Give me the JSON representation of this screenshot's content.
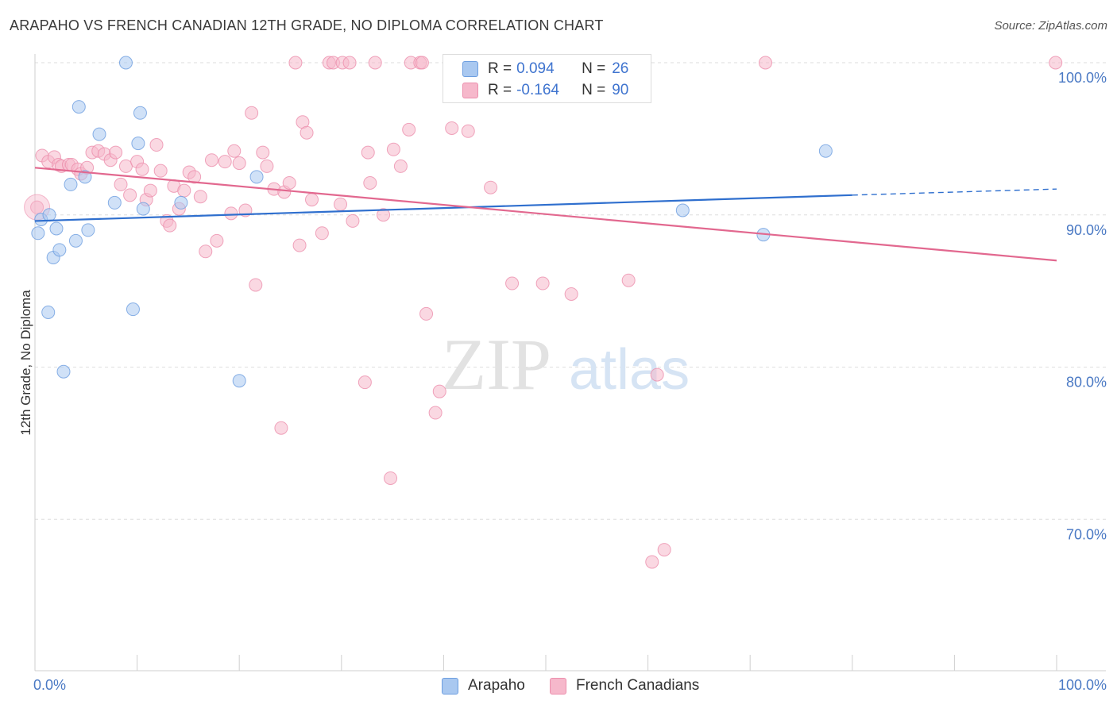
{
  "header": {
    "title": "ARAPAHO VS FRENCH CANADIAN 12TH GRADE, NO DIPLOMA CORRELATION CHART",
    "source": "Source: ZipAtlas.com"
  },
  "colors": {
    "blue_fill": "#a9c8f0",
    "blue_stroke": "#6d9ee0",
    "blue_line": "#2f6fce",
    "pink_fill": "#f6b8cb",
    "pink_stroke": "#ec8fad",
    "pink_line": "#e2688f",
    "tick_text": "#4a79c4"
  },
  "legend_box": {
    "rows": [
      {
        "r_label": "R =",
        "r_value": "0.094",
        "n_label": "N =",
        "n_value": "26"
      },
      {
        "r_label": "R =",
        "r_value": "-0.164",
        "n_label": "N =",
        "n_value": "90"
      }
    ]
  },
  "bottom_legend": {
    "items": [
      {
        "label": "Arapaho"
      },
      {
        "label": "French Canadians"
      }
    ]
  },
  "watermark": {
    "part1": "ZIP",
    "part2": "atlas"
  },
  "chart_data": {
    "type": "scatter",
    "ylabel": "12th Grade, No Diploma",
    "xlim": [
      0,
      100
    ],
    "ylim": [
      60,
      100
    ],
    "x_tick_labels": {
      "left": "0.0%",
      "right": "100.0%"
    },
    "y_ticks": [
      {
        "value": 100,
        "label": "100.0%"
      },
      {
        "value": 90,
        "label": "90.0%"
      },
      {
        "value": 80,
        "label": "80.0%"
      },
      {
        "value": 70,
        "label": "70.0%"
      }
    ],
    "grid": "horizontal dashed",
    "legend_position": "top-center",
    "series": [
      {
        "name": "Arapaho",
        "trend": {
          "x0": 0,
          "y0": 89.6,
          "x1": 80,
          "y1": 91.3,
          "dashed_to_x": 100,
          "dashed_to_y": 91.7
        },
        "points": [
          [
            0.3,
            88.8
          ],
          [
            0.6,
            89.7
          ],
          [
            1.4,
            90.0
          ],
          [
            1.8,
            87.2
          ],
          [
            2.1,
            89.1
          ],
          [
            2.4,
            87.7
          ],
          [
            2.8,
            79.7
          ],
          [
            3.5,
            92.0
          ],
          [
            4.0,
            88.3
          ],
          [
            4.3,
            97.1
          ],
          [
            4.9,
            92.5
          ],
          [
            5.2,
            89.0
          ],
          [
            6.3,
            95.3
          ],
          [
            7.8,
            90.8
          ],
          [
            8.9,
            100.0
          ],
          [
            9.6,
            83.8
          ],
          [
            10.1,
            94.7
          ],
          [
            10.3,
            96.7
          ],
          [
            10.6,
            90.4
          ],
          [
            14.3,
            90.8
          ],
          [
            20.0,
            79.1
          ],
          [
            21.7,
            92.5
          ],
          [
            1.3,
            83.6
          ],
          [
            63.4,
            90.3
          ],
          [
            71.3,
            88.7
          ],
          [
            77.4,
            94.2
          ]
        ]
      },
      {
        "name": "French Canadians",
        "trend": {
          "x0": 0,
          "y0": 93.1,
          "x1": 100,
          "y1": 87.0
        },
        "points": [
          [
            0.2,
            90.5
          ],
          [
            0.7,
            93.9
          ],
          [
            1.3,
            93.5
          ],
          [
            1.9,
            93.8
          ],
          [
            2.3,
            93.3
          ],
          [
            2.6,
            93.2
          ],
          [
            3.3,
            93.3
          ],
          [
            3.6,
            93.3
          ],
          [
            4.2,
            93.0
          ],
          [
            4.5,
            92.7
          ],
          [
            5.1,
            93.1
          ],
          [
            5.6,
            94.1
          ],
          [
            6.2,
            94.2
          ],
          [
            6.8,
            94.0
          ],
          [
            7.4,
            93.6
          ],
          [
            7.9,
            94.1
          ],
          [
            8.4,
            92.0
          ],
          [
            8.9,
            93.2
          ],
          [
            9.3,
            91.3
          ],
          [
            10.0,
            93.5
          ],
          [
            10.5,
            93.0
          ],
          [
            10.9,
            91.0
          ],
          [
            11.3,
            91.6
          ],
          [
            11.9,
            94.6
          ],
          [
            12.3,
            92.9
          ],
          [
            12.9,
            89.6
          ],
          [
            13.2,
            89.3
          ],
          [
            13.6,
            91.9
          ],
          [
            14.1,
            90.4
          ],
          [
            14.6,
            91.6
          ],
          [
            15.1,
            92.8
          ],
          [
            15.6,
            92.5
          ],
          [
            16.2,
            91.2
          ],
          [
            16.7,
            87.6
          ],
          [
            17.3,
            93.6
          ],
          [
            17.8,
            88.3
          ],
          [
            18.6,
            93.5
          ],
          [
            19.2,
            90.1
          ],
          [
            19.5,
            94.2
          ],
          [
            20.0,
            93.4
          ],
          [
            20.6,
            90.3
          ],
          [
            21.2,
            96.7
          ],
          [
            21.6,
            85.4
          ],
          [
            22.3,
            94.1
          ],
          [
            22.7,
            93.2
          ],
          [
            23.4,
            91.7
          ],
          [
            24.1,
            76.0
          ],
          [
            24.4,
            91.5
          ],
          [
            24.9,
            92.1
          ],
          [
            25.5,
            100.0
          ],
          [
            25.9,
            88.0
          ],
          [
            26.2,
            96.1
          ],
          [
            26.6,
            95.4
          ],
          [
            27.1,
            91.0
          ],
          [
            28.1,
            88.8
          ],
          [
            28.8,
            100.0
          ],
          [
            29.2,
            100.0
          ],
          [
            29.9,
            90.7
          ],
          [
            30.1,
            100.0
          ],
          [
            30.8,
            100.0
          ],
          [
            31.1,
            89.6
          ],
          [
            32.3,
            79.0
          ],
          [
            32.6,
            94.1
          ],
          [
            32.8,
            92.1
          ],
          [
            33.3,
            100.0
          ],
          [
            34.1,
            90.0
          ],
          [
            34.8,
            72.7
          ],
          [
            35.1,
            94.3
          ],
          [
            35.8,
            93.2
          ],
          [
            36.6,
            95.6
          ],
          [
            36.8,
            100.0
          ],
          [
            37.7,
            100.0
          ],
          [
            37.9,
            100.0
          ],
          [
            38.3,
            83.5
          ],
          [
            39.2,
            77.0
          ],
          [
            39.6,
            78.4
          ],
          [
            40.8,
            95.7
          ],
          [
            42.4,
            95.5
          ],
          [
            44.6,
            91.8
          ],
          [
            46.7,
            85.5
          ],
          [
            49.0,
            100.0
          ],
          [
            49.7,
            85.5
          ],
          [
            52.5,
            84.8
          ],
          [
            58.1,
            85.7
          ],
          [
            60.4,
            67.2
          ],
          [
            60.9,
            79.5
          ],
          [
            61.6,
            68.0
          ],
          [
            71.5,
            100.0
          ],
          [
            99.9,
            100.0
          ],
          [
            44.9,
            100.0
          ]
        ]
      }
    ]
  }
}
